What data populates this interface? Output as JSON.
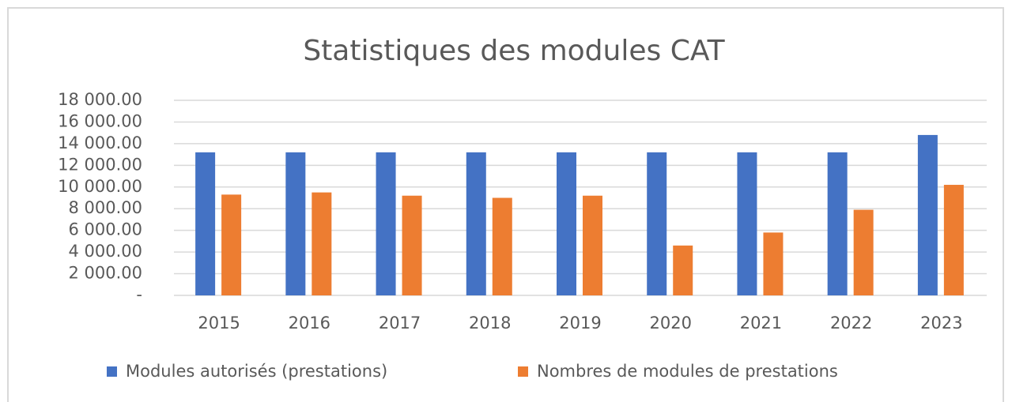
{
  "chart_data": {
    "type": "bar",
    "title": "Statistiques des modules CAT",
    "categories": [
      "2015",
      "2016",
      "2017",
      "2018",
      "2019",
      "2020",
      "2021",
      "2022",
      "2023"
    ],
    "series": [
      {
        "name": "Modules autorisés (prestations)",
        "color": "#4472c4",
        "values": [
          13200,
          13200,
          13200,
          13200,
          13200,
          13200,
          13200,
          13200,
          14800
        ]
      },
      {
        "name": "Nombres de modules de prestations",
        "color": "#ed7d31",
        "values": [
          9300,
          9500,
          9200,
          9000,
          9200,
          4600,
          5800,
          7900,
          10200
        ]
      }
    ],
    "ylim": [
      0,
      18000
    ],
    "yticks": [
      {
        "value": 0,
        "label": "-"
      },
      {
        "value": 2000,
        "label": "2 000.00"
      },
      {
        "value": 4000,
        "label": "4 000.00"
      },
      {
        "value": 6000,
        "label": "6 000.00"
      },
      {
        "value": 8000,
        "label": "8 000.00"
      },
      {
        "value": 10000,
        "label": "10 000.00"
      },
      {
        "value": 12000,
        "label": "12 000.00"
      },
      {
        "value": 14000,
        "label": "14 000.00"
      },
      {
        "value": 16000,
        "label": "16 000.00"
      },
      {
        "value": 18000,
        "label": "18 000.00"
      }
    ],
    "grid": true,
    "legend": "bottom"
  }
}
